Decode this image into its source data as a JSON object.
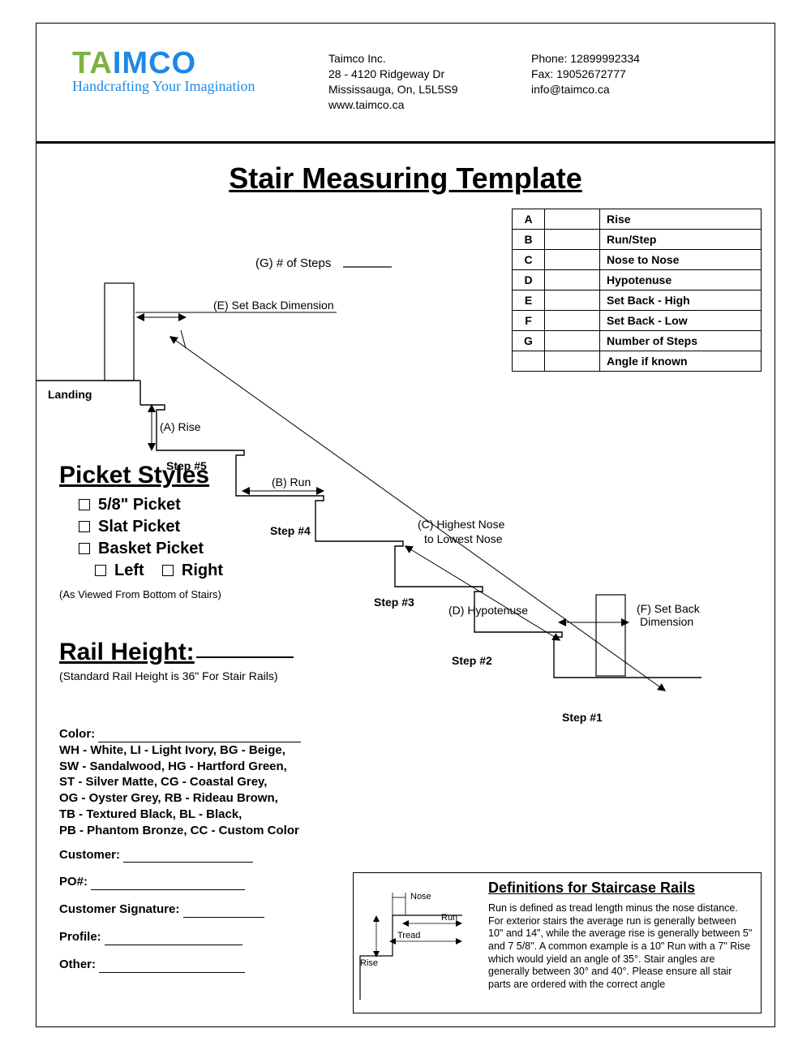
{
  "company": {
    "name": "Taimco Inc.",
    "addr1": "28 - 4120 Ridgeway Dr",
    "addr2": "Mississauga, On, L5L5S9",
    "web": "www.taimco.ca",
    "phone": "Phone: 12899992334",
    "fax": "Fax: 19052672777",
    "email": "info@taimco.ca",
    "tagline": "Handcrafting Your Imagination"
  },
  "logo": {
    "seg1": "T",
    "seg2": "A",
    "seg3": "IM",
    "seg4": "CO",
    "color_green": "#7cb342",
    "color_blue": "#1e88e5"
  },
  "title": "Stair Measuring Template",
  "legend": [
    {
      "k": "A",
      "lab": "Rise"
    },
    {
      "k": "B",
      "lab": "Run/Step"
    },
    {
      "k": "C",
      "lab": "Nose to Nose"
    },
    {
      "k": "D",
      "lab": "Hypotenuse"
    },
    {
      "k": "E",
      "lab": "Set Back - High"
    },
    {
      "k": "F",
      "lab": "Set Back - Low"
    },
    {
      "k": "G",
      "lab": "Number of Steps"
    },
    {
      "k": "",
      "lab": "Angle if known"
    }
  ],
  "diagram": {
    "g_label": "(G) # of Steps",
    "e_label": "(E) Set Back Dimension",
    "a_label": "(A) Rise",
    "b_label": "(B) Run",
    "c_label1": "(C) Highest Nose",
    "c_label2": "to Lowest Nose",
    "d_label": "(D) Hypotenuse",
    "f_label1": "(F) Set Back",
    "f_label2": "Dimension",
    "landing": "Landing",
    "step5": "Step #5",
    "step4": "Step #4",
    "step3": "Step #3",
    "step2": "Step #2",
    "step1": "Step #1",
    "stroke": "#000000",
    "fill_post": "#ffffff"
  },
  "picket": {
    "heading": "Picket Styles",
    "opt1": "5/8\" Picket",
    "opt2": "Slat Picket",
    "opt3": "Basket Picket",
    "left": "Left",
    "right": "Right",
    "note": "(As Viewed From Bottom of Stairs)"
  },
  "rail": {
    "heading": "Rail Height:",
    "note": "(Standard Rail Height is 36\" For Stair Rails)"
  },
  "info": {
    "color_label": "Color:",
    "colors_l1": "WH - White, LI - Light Ivory, BG - Beige,",
    "colors_l2": "SW - Sandalwood, HG - Hartford Green,",
    "colors_l3": "ST - Silver Matte, CG - Coastal Grey,",
    "colors_l4": "OG - Oyster Grey, RB - Rideau Brown,",
    "colors_l5": "TB - Textured Black, BL - Black,",
    "colors_l6": "PB - Phantom Bronze, CC - Custom Color",
    "customer": "Customer:",
    "po": "PO#:",
    "sig": "Customer Signature:",
    "profile": "Profile:",
    "other": "Other:"
  },
  "defs": {
    "heading": "Definitions for Staircase Rails",
    "body": "Run is defined as tread length minus the nose distance. For exterior stairs the average run is generally between 10\" and 14\", while the average rise is generally between 5\" and 7 5/8\". A common example is a 10\" Run with a 7\" Rise which would yield an angle of 35°. Stair angles are generally between 30° and 40°. Please ensure all stair parts are ordered with the correct angle",
    "nose": "Nose",
    "run": "Run",
    "tread": "Tread",
    "rise": "Rise"
  }
}
